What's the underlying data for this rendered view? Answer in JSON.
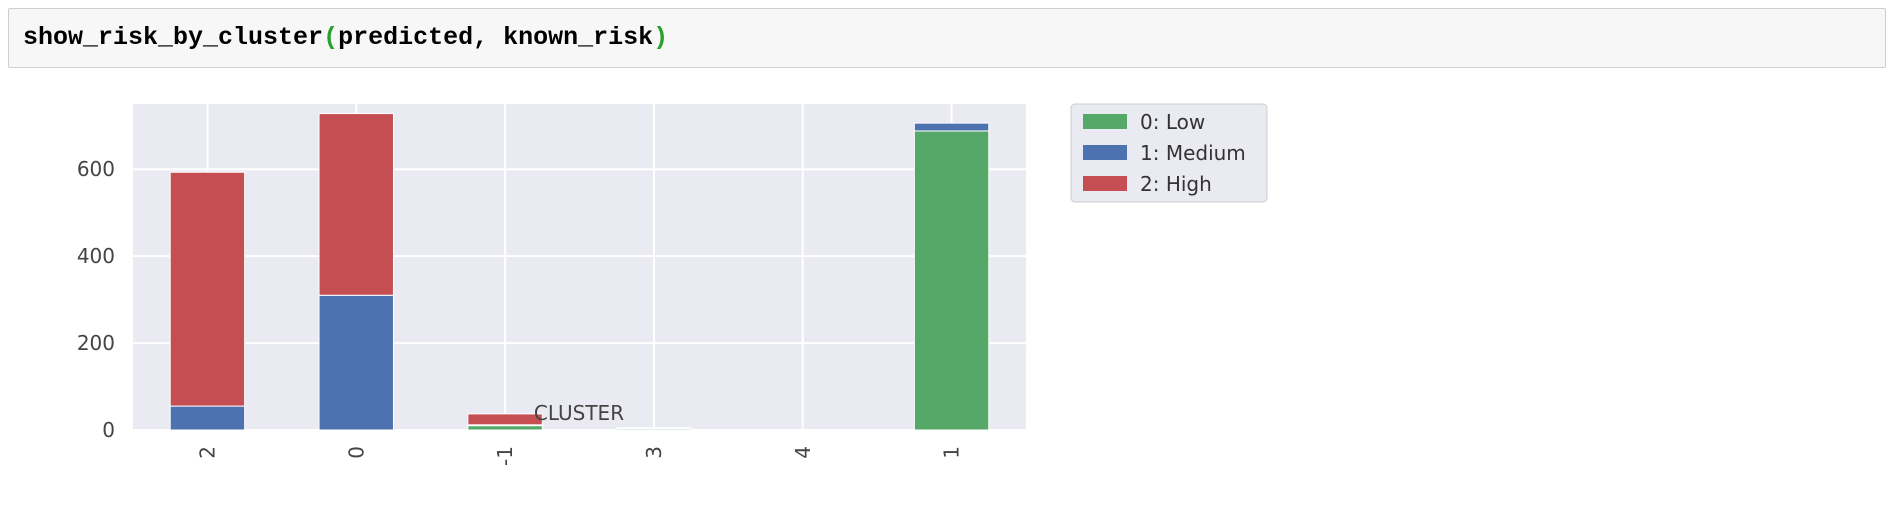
{
  "code": {
    "function_name": "show_risk_by_cluster",
    "open_paren": "(",
    "args": "predicted, known_risk",
    "close_paren": ")"
  },
  "chart_data": {
    "type": "bar",
    "stacked": true,
    "categories": [
      "2",
      "0",
      "-1",
      "3",
      "4",
      "1"
    ],
    "series": [
      {
        "name": "0: Low",
        "color": "#55a868",
        "values": [
          0,
          0,
          10,
          3,
          1,
          688
        ]
      },
      {
        "name": "1: Medium",
        "color": "#4c72b0",
        "values": [
          55,
          310,
          2,
          0,
          0,
          18
        ]
      },
      {
        "name": "2: High",
        "color": "#c44e52",
        "values": [
          538,
          418,
          25,
          2,
          0,
          0
        ]
      }
    ],
    "xlabel": "CLUSTER",
    "ylabel": "",
    "ylim": [
      0,
      750
    ],
    "yticks": [
      0,
      200,
      400,
      600
    ],
    "grid": true,
    "legend": "outside-top-right"
  }
}
